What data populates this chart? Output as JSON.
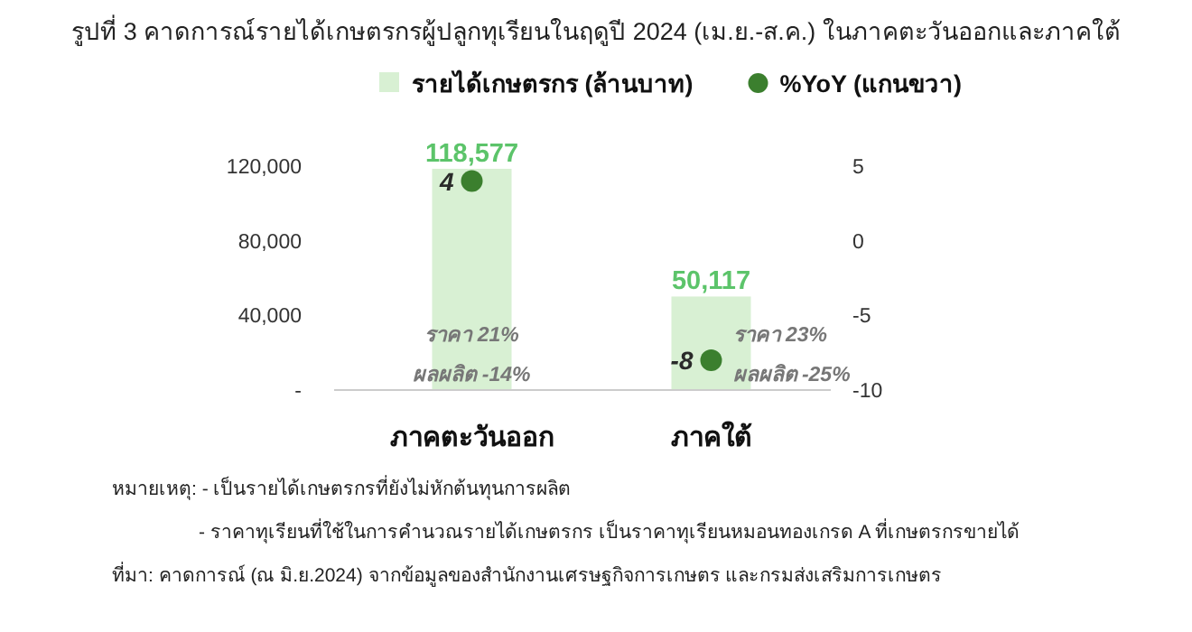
{
  "chart_data": {
    "type": "bar",
    "title": "รูปที่ 3 คาดการณ์รายได้เกษตรกรผู้ปลูกทุเรียนในฤดูปี 2024 (เม.ย.-ส.ค.) ในภาคตะวันออกและภาคใต้",
    "categories": [
      "ภาคตะวันออก",
      "ภาคใต้"
    ],
    "series": [
      {
        "name": "รายได้เกษตรกร (ล้านบาท)",
        "color": "#d8f0d3",
        "values": [
          118577,
          50117
        ],
        "value_labels": [
          "118,577",
          "50,117"
        ]
      },
      {
        "name": "%YoY (แกนขวา)",
        "type": "scatter",
        "axis": "y2",
        "marker": "circle",
        "color": "#3b7f2e",
        "values": [
          4,
          -8
        ],
        "value_labels": [
          "4",
          "-8"
        ]
      }
    ],
    "ylim": [
      0,
      120000
    ],
    "yticks": [
      {
        "value": 0,
        "label": "-"
      },
      {
        "value": 40000,
        "label": "40,000"
      },
      {
        "value": 80000,
        "label": "80,000"
      },
      {
        "value": 120000,
        "label": "120,000"
      }
    ],
    "y2lim": [
      -10,
      5
    ],
    "y2ticks": [
      5,
      0,
      -5,
      -10
    ],
    "grid": false,
    "legend": "top",
    "annotations": [
      "ราคา 21%",
      "ผลผลิต -14%",
      "ราคา 23%",
      "ผลผลิต -25%",
      "หมายเหตุ: - เป็นรายได้เกษตรกรที่ยังไม่หักต้นทุนการผลิต",
      "- ราคาทุเรียนที่ใช้ในการคำนวณรายได้เกษตรกร เป็นราคาทุเรียนหมอนทองเกรด A ที่เกษตรกรขายได้",
      "ที่มา: คาดการณ์ (ณ มิ.ย.2024) จากข้อมูลของสำนักงานเศรษฐกิจการเกษตร และกรมส่งเสริมการเกษตร"
    ]
  }
}
